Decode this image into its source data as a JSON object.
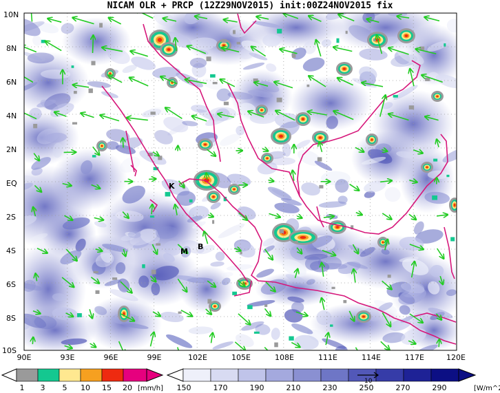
{
  "title": "NICAM OLR + PRCP (12Z29NOV2015) init:00Z24NOV2015 fix",
  "lat_ticks": [
    "10N",
    "8N",
    "6N",
    "4N",
    "2N",
    "EQ",
    "2S",
    "4S",
    "6S",
    "8S",
    "10S"
  ],
  "lon_ticks": [
    "90E",
    "93E",
    "96E",
    "99E",
    "102E",
    "105E",
    "108E",
    "111E",
    "114E",
    "117E",
    "120E"
  ],
  "place_labels": [
    "K",
    "M",
    "B"
  ],
  "precip_legend": {
    "labels": [
      "1",
      "3",
      "5",
      "10",
      "15",
      "20"
    ],
    "unit": "[mm/h]",
    "colors": [
      "#9a9a9a",
      "#14c890",
      "#ffe890",
      "#f6a020",
      "#ee2a10",
      "#e6007e"
    ]
  },
  "olr_legend": {
    "labels": [
      "150",
      "170",
      "190",
      "210",
      "230",
      "250",
      "270",
      "290"
    ],
    "unit": "[W/m^2]",
    "colors": [
      "#eef0fa",
      "#d8dbf2",
      "#c0c4ea",
      "#a4a9de",
      "#8a90d2",
      "#6e76c6",
      "#5258b8",
      "#363ca8",
      "#1e2296",
      "#0c0f84"
    ]
  },
  "vector_ref": "10",
  "colors": {
    "coast": "#d6167a",
    "wind": "#22cc22",
    "grid": "#9a9a9a"
  }
}
